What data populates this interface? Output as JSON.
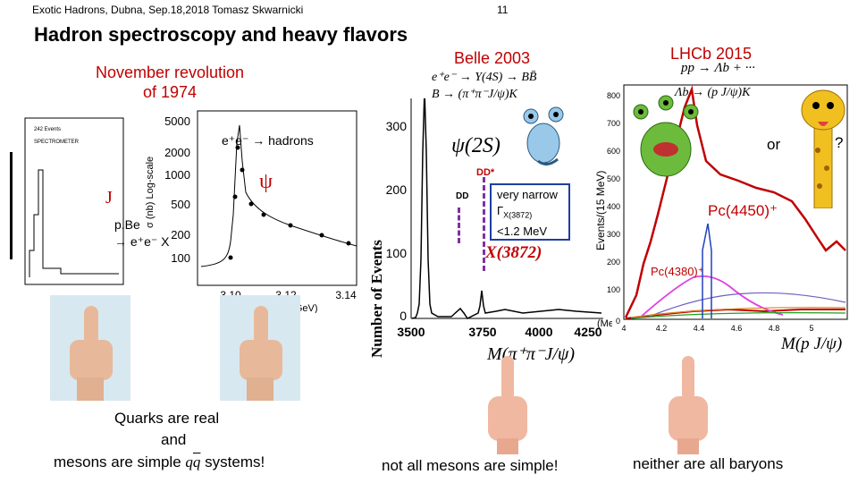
{
  "header": {
    "left": "Exotic Hadrons, Dubna, Sep.18,2018 Tomasz Skwarnicki",
    "page": "11"
  },
  "title": "Hadron spectroscopy and heavy flavors",
  "november": {
    "line1": "November revolution",
    "line2": "of 1974"
  },
  "belle": {
    "label": "Belle 2003",
    "reaction1": "e⁺e⁻ → Υ(4S) → BB̄",
    "reaction2": "B → (π⁺π⁻J/ψ)K",
    "psi2s": "ψ(2S)",
    "dd_star": "DD*",
    "dd": "DD",
    "narrow1": "very narrow",
    "narrow2": "Γ",
    "narrow2_sub": "X(3872)",
    "narrow3": "<1.2 MeV",
    "x3872": "X(3872)",
    "ylabel": "Number of Events",
    "xlabel": "M(π⁺π⁻J/ψ)",
    "yticks": [
      "0",
      "100",
      "200",
      "300"
    ],
    "xticks": [
      "3500",
      "3750",
      "4000",
      "4250",
      "(MeV)"
    ]
  },
  "lhcb": {
    "label": "LHCb 2015",
    "reaction1": "pp → Λb + ···",
    "reaction2": "Λb → (p J/ψ)K",
    "or": "or",
    "question": "?",
    "pc4450": "Pc(4450)⁺",
    "pc4380": "Pc(4380)⁺",
    "ylabel": "Events/(15 MeV)",
    "xlabel": "M(p J/ψ)",
    "yticks": [
      "0",
      "100",
      "200",
      "300",
      "400",
      "500",
      "600",
      "700",
      "800"
    ],
    "xticks": [
      "4",
      "4.2",
      "4.4",
      "4.6",
      "4.8",
      "5"
    ]
  },
  "psi1974": {
    "reaction": "e⁺e⁻ → hadrons",
    "psi": "ψ",
    "j": "J",
    "pbe1": "p.Be",
    "pbe2": "→ e⁺e⁻ X",
    "ylabel": "σ (nb) Log-scale",
    "yticks": [
      "5000",
      "2000",
      "1000",
      "500",
      "200",
      "100"
    ],
    "xticks": [
      "3.10",
      "3.12",
      "3.14"
    ],
    "xlabel": "Ec.m. (GeV)"
  },
  "captions": {
    "quarks1": "Quarks are real",
    "quarks2": "and",
    "quarks3": "mesons are simple",
    "quarks3_tail": "systems!",
    "not_all": "not all mesons are simple!",
    "neither": "neither are all baryons"
  }
}
